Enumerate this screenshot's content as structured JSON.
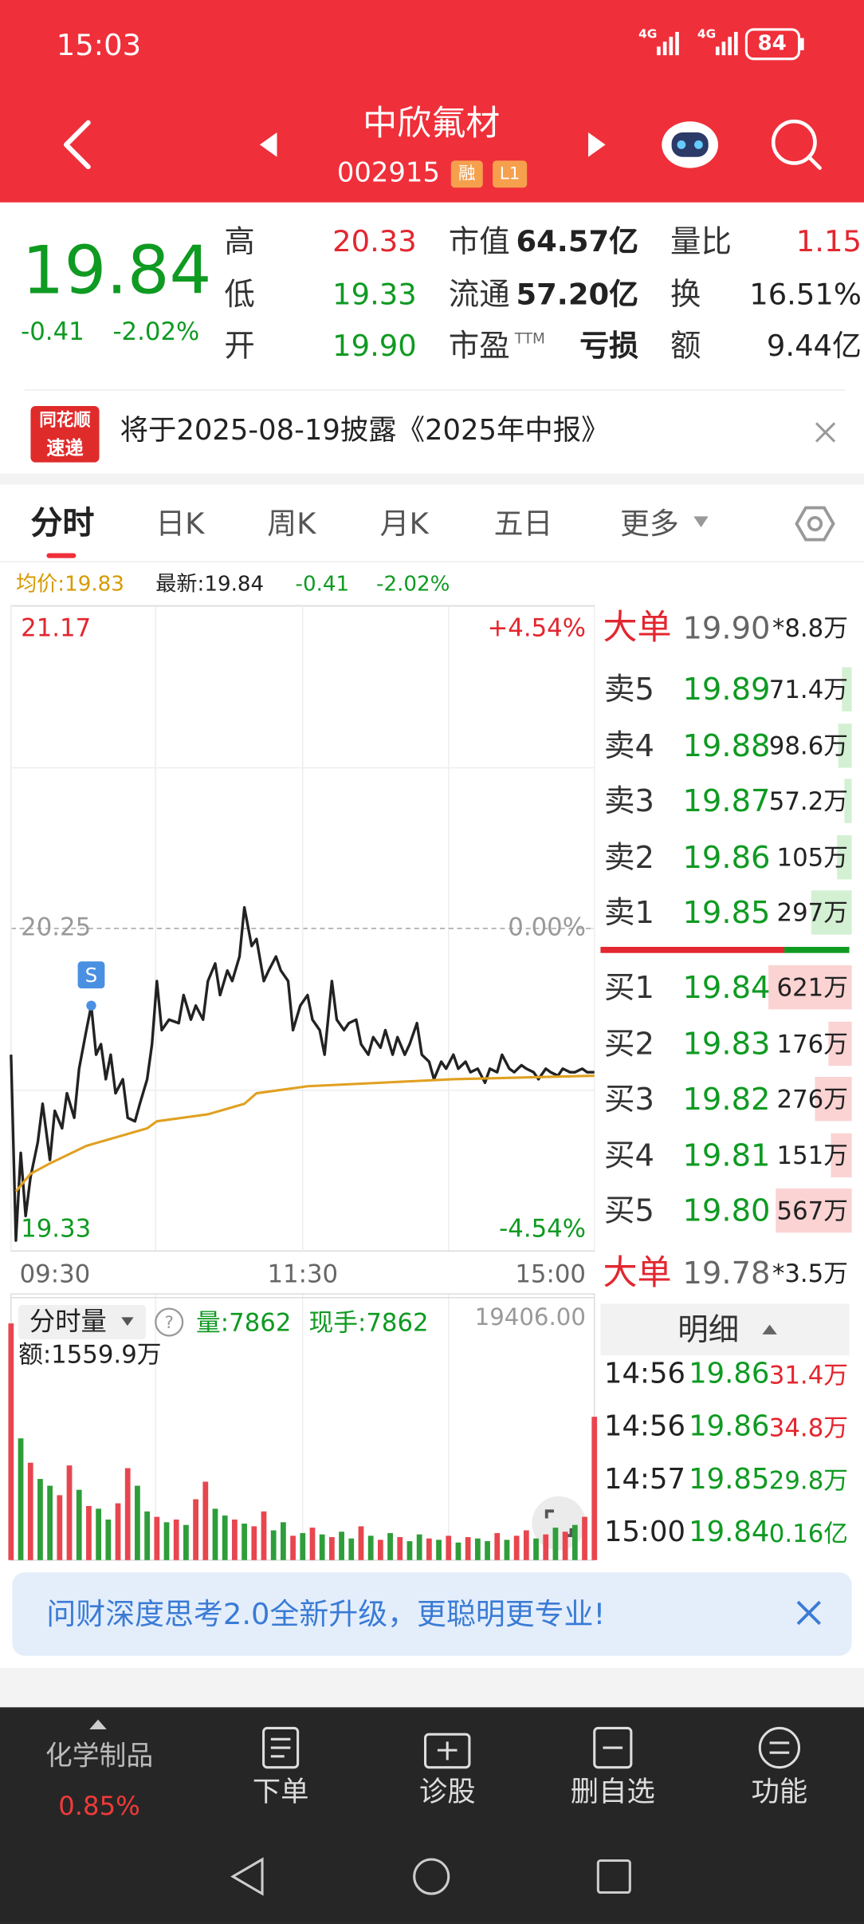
{
  "status_bar": {
    "time": "15:03",
    "network": [
      "4G",
      "4G"
    ],
    "battery": "84"
  },
  "header": {
    "title": "中欣氟材",
    "code": "002915",
    "badges": [
      "融",
      "L1"
    ]
  },
  "quote": {
    "price": "19.84",
    "change": "-0.41",
    "change_pct": "-2.02%",
    "stats": [
      [
        {
          "label": "高",
          "value": "20.33",
          "color": "#e3262f"
        },
        {
          "label": "市值",
          "value": "64.57亿",
          "color": "#222"
        },
        {
          "label": "量比",
          "value": "1.15",
          "color": "#e3262f"
        }
      ],
      [
        {
          "label": "低",
          "value": "19.33",
          "color": "#0f9a22"
        },
        {
          "label": "流通",
          "value": "57.20亿",
          "color": "#222"
        },
        {
          "label": "换",
          "value": "16.51%",
          "color": "#222"
        }
      ],
      [
        {
          "label": "开",
          "value": "19.90",
          "color": "#0f9a22"
        },
        {
          "label": "市盈",
          "label_sup": "TTM",
          "value": "亏损",
          "color": "#222"
        },
        {
          "label": "额",
          "value": "9.44亿",
          "color": "#222"
        }
      ]
    ]
  },
  "notice": {
    "badge": [
      "同花顺",
      "速递"
    ],
    "text": "将于2025-08-19披露《2025年中报》"
  },
  "tabs": [
    "分时",
    "日K",
    "周K",
    "月K",
    "五日",
    "更多"
  ],
  "info_bar": {
    "average": "均价:19.83",
    "latest": "最新:19.84",
    "change": "-0.41",
    "change_pct": "-2.02%"
  },
  "chart_data": [
    {
      "type": "line",
      "xlim": [
        0,
        240
      ],
      "ylim": [
        19.33,
        21.17
      ],
      "yticks": [
        21.17,
        20.25,
        19.33
      ],
      "y2lim": [
        -4.54,
        4.54
      ],
      "y2ticks": [
        {
          "value": 4.54,
          "label": "+4.54%"
        },
        {
          "value": 0,
          "label": "0.00%"
        },
        {
          "value": -4.54,
          "label": "-4.54%"
        }
      ],
      "xticks": [
        {
          "value": 0,
          "label": "09:30"
        },
        {
          "value": 120,
          "label": "11:30"
        },
        {
          "value": 240,
          "label": "15:00"
        }
      ],
      "series": [
        {
          "color": "#222222",
          "x": [
            0,
            2,
            4,
            6,
            8,
            11,
            13,
            16,
            18,
            21,
            23,
            26,
            28,
            31,
            33,
            35,
            37,
            39,
            41,
            43,
            46,
            48,
            51,
            53,
            56,
            58,
            60,
            62,
            65,
            69,
            71,
            74,
            76,
            79,
            81,
            84,
            86,
            89,
            91,
            94,
            96,
            99,
            101,
            104,
            106,
            109,
            111,
            114,
            116,
            119,
            122,
            124,
            127,
            129,
            132,
            134,
            137,
            139,
            142,
            144,
            147,
            149,
            152,
            154,
            157,
            159,
            162,
            164,
            167,
            169,
            172,
            174,
            177,
            179,
            182,
            184,
            187,
            189,
            192,
            195,
            197,
            200,
            202,
            205,
            207,
            210,
            212,
            215,
            217,
            220,
            222,
            225,
            227,
            230,
            232,
            235,
            237,
            240
          ],
          "values": [
            19.89,
            19.36,
            19.61,
            19.43,
            19.54,
            19.64,
            19.75,
            19.59,
            19.73,
            19.68,
            19.78,
            19.71,
            19.85,
            19.96,
            20.03,
            19.89,
            19.92,
            19.82,
            19.89,
            19.78,
            19.82,
            19.71,
            19.7,
            19.75,
            19.82,
            19.92,
            20.1,
            19.96,
            19.99,
            19.98,
            20.06,
            19.99,
            20.03,
            19.99,
            20.1,
            20.15,
            20.06,
            20.13,
            20.1,
            20.17,
            20.31,
            20.2,
            20.22,
            20.1,
            20.13,
            20.17,
            20.13,
            20.1,
            19.96,
            20.03,
            20.06,
            19.99,
            19.96,
            19.89,
            20.1,
            19.99,
            19.96,
            19.98,
            19.99,
            19.92,
            19.89,
            19.94,
            19.91,
            19.96,
            19.89,
            19.94,
            19.89,
            19.92,
            19.98,
            19.89,
            19.87,
            19.82,
            19.87,
            19.85,
            19.89,
            19.85,
            19.87,
            19.84,
            19.85,
            19.81,
            19.85,
            19.84,
            19.89,
            19.85,
            19.84,
            19.86,
            19.85,
            19.84,
            19.82,
            19.85,
            19.84,
            19.83,
            19.85,
            19.84,
            19.84,
            19.85,
            19.84,
            19.84
          ]
        },
        {
          "color": "#e0a020",
          "x": [
            2,
            8,
            16,
            31,
            46,
            56,
            60,
            81,
            96,
            101,
            122,
            152,
            182,
            240
          ],
          "values": [
            19.5,
            19.55,
            19.58,
            19.63,
            19.66,
            19.68,
            19.7,
            19.72,
            19.75,
            19.78,
            19.8,
            19.81,
            19.82,
            19.83
          ]
        }
      ],
      "signal": {
        "label": "S",
        "x": 33,
        "value": 20.03
      }
    },
    {
      "type": "bar",
      "title": "分时量",
      "volume": "量:7862",
      "current_hand": "现手:7862",
      "amount": "额:1559.9万",
      "xlim": [
        0,
        240
      ],
      "ylim": [
        0,
        19406
      ],
      "yticks": [
        {
          "value": 19406,
          "label": "19406.00"
        }
      ],
      "x": [
        0,
        4,
        8,
        12,
        16,
        20,
        24,
        28,
        32,
        36,
        40,
        44,
        48,
        52,
        56,
        60,
        64,
        68,
        72,
        76,
        80,
        84,
        88,
        92,
        96,
        100,
        104,
        108,
        112,
        116,
        120,
        124,
        128,
        132,
        136,
        140,
        144,
        148,
        152,
        156,
        160,
        164,
        168,
        172,
        176,
        180,
        184,
        188,
        192,
        196,
        200,
        204,
        208,
        212,
        216,
        220,
        224,
        228,
        232,
        236,
        240
      ],
      "values": [
        17500,
        9000,
        7200,
        6000,
        5500,
        4800,
        7000,
        5200,
        4000,
        3800,
        3000,
        4200,
        6800,
        5500,
        3600,
        3200,
        2800,
        3000,
        2600,
        4500,
        5800,
        3800,
        3300,
        3000,
        2700,
        2500,
        3600,
        2200,
        2800,
        1800,
        2000,
        2400,
        1900,
        1700,
        2100,
        1600,
        2500,
        1800,
        1500,
        2000,
        1700,
        1400,
        1900,
        1600,
        1500,
        1800,
        1300,
        1700,
        1600,
        1400,
        2000,
        1500,
        1800,
        2200,
        1600,
        1900,
        2400,
        2100,
        2600,
        3200,
        10600
      ],
      "colors": [
        "#e8464f",
        "#2e9e3a",
        "#e8464f",
        "#2e9e3a",
        "#2e9e3a",
        "#e8464f",
        "#e8464f",
        "#2e9e3a",
        "#e8464f",
        "#2e9e3a",
        "#2e9e3a",
        "#e8464f",
        "#e8464f",
        "#2e9e3a",
        "#2e9e3a",
        "#e8464f",
        "#2e9e3a",
        "#e8464f",
        "#2e9e3a",
        "#e8464f",
        "#e8464f",
        "#2e9e3a",
        "#2e9e3a",
        "#e8464f",
        "#2e9e3a",
        "#e8464f",
        "#e8464f",
        "#2e9e3a",
        "#2e9e3a",
        "#e8464f",
        "#2e9e3a",
        "#e8464f",
        "#2e9e3a",
        "#e8464f",
        "#2e9e3a",
        "#2e9e3a",
        "#e8464f",
        "#2e9e3a",
        "#e8464f",
        "#2e9e3a",
        "#e8464f",
        "#2e9e3a",
        "#2e9e3a",
        "#e8464f",
        "#2e9e3a",
        "#e8464f",
        "#2e9e3a",
        "#e8464f",
        "#2e9e3a",
        "#2e9e3a",
        "#e8464f",
        "#2e9e3a",
        "#e8464f",
        "#e8464f",
        "#2e9e3a",
        "#e8464f",
        "#2e9e3a",
        "#e8464f",
        "#2e9e3a",
        "#e8464f",
        "#e8464f"
      ]
    }
  ],
  "order_book": {
    "big_sell": {
      "label": "大单",
      "price": "19.90",
      "volume": "*8.8万"
    },
    "asks": [
      {
        "label": "卖5",
        "price": "19.89",
        "volume": 71.4,
        "volume_label": "71.4万"
      },
      {
        "label": "卖4",
        "price": "19.88",
        "volume": 98.6,
        "volume_label": "98.6万"
      },
      {
        "label": "卖3",
        "price": "19.87",
        "volume": 57.2,
        "volume_label": "57.2万"
      },
      {
        "label": "卖2",
        "price": "19.86",
        "volume": 105,
        "volume_label": "105万"
      },
      {
        "label": "卖1",
        "price": "19.85",
        "volume": 297,
        "volume_label": "297万"
      }
    ],
    "bids": [
      {
        "label": "买1",
        "price": "19.84",
        "volume": 621,
        "volume_label": "621万"
      },
      {
        "label": "买2",
        "price": "19.83",
        "volume": 176,
        "volume_label": "176万"
      },
      {
        "label": "买3",
        "price": "19.82",
        "volume": 276,
        "volume_label": "276万"
      },
      {
        "label": "买4",
        "price": "19.81",
        "volume": 151,
        "volume_label": "151万"
      },
      {
        "label": "买5",
        "price": "19.80",
        "volume": 567,
        "volume_label": "567万"
      }
    ],
    "big_buy": {
      "label": "大单",
      "price": "19.78",
      "volume": "*3.5万"
    }
  },
  "trades": {
    "title": "明细",
    "rows": [
      {
        "time": "14:56",
        "price": "19.86",
        "volume": "31.4万",
        "color": "#e3262f"
      },
      {
        "time": "14:56",
        "price": "19.86",
        "volume": "34.8万",
        "color": "#e3262f"
      },
      {
        "time": "14:57",
        "price": "19.85",
        "volume": "29.8万",
        "color": "#0f9a22"
      },
      {
        "time": "15:00",
        "price": "19.84",
        "volume": "0.16亿",
        "color": "#0f9a22"
      }
    ]
  },
  "banner": {
    "text": "问财深度思考2.0全新升级，更聪明更专业!"
  },
  "bottom_nav": {
    "sector": "化学制品",
    "sector_change": "0.85%",
    "items": [
      "下单",
      "诊股",
      "删自选",
      "功能"
    ]
  }
}
